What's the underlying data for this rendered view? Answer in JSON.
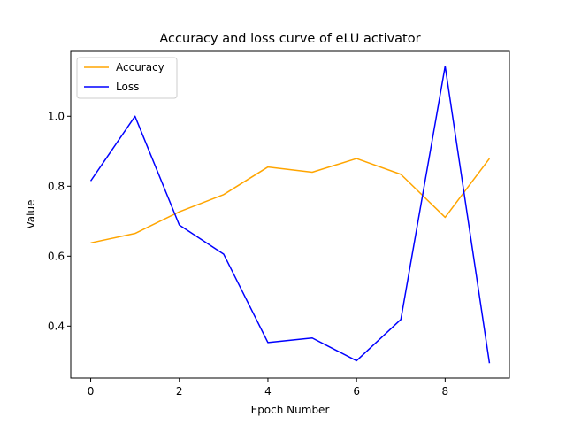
{
  "chart_data": {
    "type": "line",
    "title": "Accuracy and loss curve of eLU activator",
    "xlabel": "Epoch Number",
    "ylabel": "Value",
    "x": [
      0,
      1,
      2,
      3,
      4,
      5,
      6,
      7,
      8,
      9
    ],
    "series": [
      {
        "name": "Accuracy",
        "color": "#ffa500",
        "values": [
          0.638,
          0.665,
          0.727,
          0.776,
          0.855,
          0.84,
          0.879,
          0.834,
          0.711,
          0.879
        ]
      },
      {
        "name": "Loss",
        "color": "#0000ff",
        "values": [
          0.815,
          1.0,
          0.689,
          0.606,
          0.353,
          0.366,
          0.301,
          0.419,
          1.143,
          0.294
        ]
      }
    ],
    "xlim": [
      -0.45,
      9.45
    ],
    "ylim": [
      0.2515,
      1.1855
    ],
    "xticks": [
      {
        "value": 0,
        "label": "0"
      },
      {
        "value": 2,
        "label": "2"
      },
      {
        "value": 4,
        "label": "4"
      },
      {
        "value": 6,
        "label": "6"
      },
      {
        "value": 8,
        "label": "8"
      }
    ],
    "yticks": [
      {
        "value": 0.4,
        "label": "0.4"
      },
      {
        "value": 0.6,
        "label": "0.6"
      },
      {
        "value": 0.8,
        "label": "0.8"
      },
      {
        "value": 1.0,
        "label": "1.0"
      }
    ],
    "grid": false,
    "legend": "top-left"
  }
}
